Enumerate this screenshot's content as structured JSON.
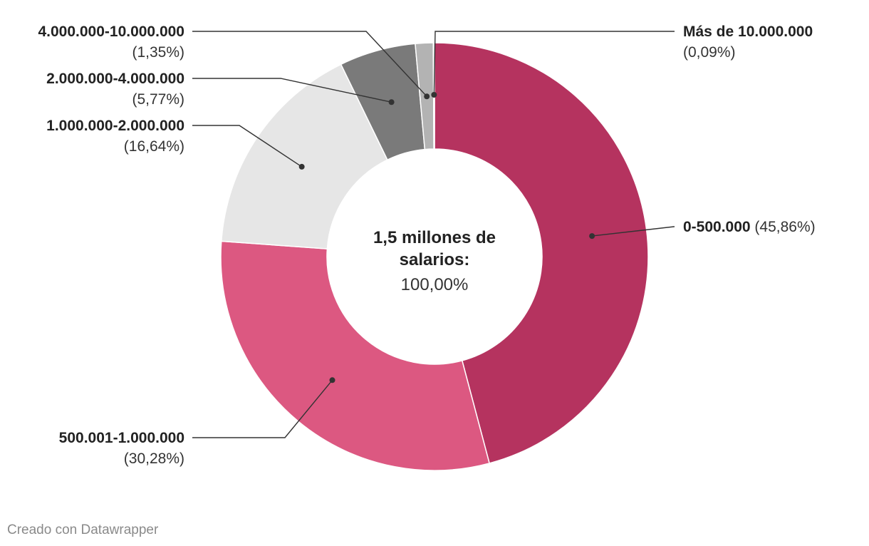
{
  "chart_data": {
    "type": "pie",
    "variant": "donut",
    "title": "",
    "center_label": {
      "title_lines": [
        "1,5 millones de",
        "salarios:"
      ],
      "value": "100,00%"
    },
    "slices": [
      {
        "label": "0-500.000",
        "pct_label": "(45,86%)",
        "value": 45.86,
        "color": "#b5335f"
      },
      {
        "label": "500.001-1.000.000",
        "pct_label": "(30,28%)",
        "value": 30.28,
        "color": "#dc5881"
      },
      {
        "label": "1.000.000-2.000.000",
        "pct_label": "(16,64%)",
        "value": 16.64,
        "color": "#e6e6e6"
      },
      {
        "label": "2.000.000-4.000.000",
        "pct_label": "(5,77%)",
        "value": 5.77,
        "color": "#7a7a7a"
      },
      {
        "label": "4.000.000-10.000.000",
        "pct_label": "(1,35%)",
        "value": 1.35,
        "color": "#b3b3b3"
      },
      {
        "label": "Más de 10.000.000",
        "pct_label": "(0,09%)",
        "value": 0.09,
        "color": "#4d4d4d"
      }
    ]
  },
  "footer": {
    "credit": "Creado con Datawrapper"
  }
}
